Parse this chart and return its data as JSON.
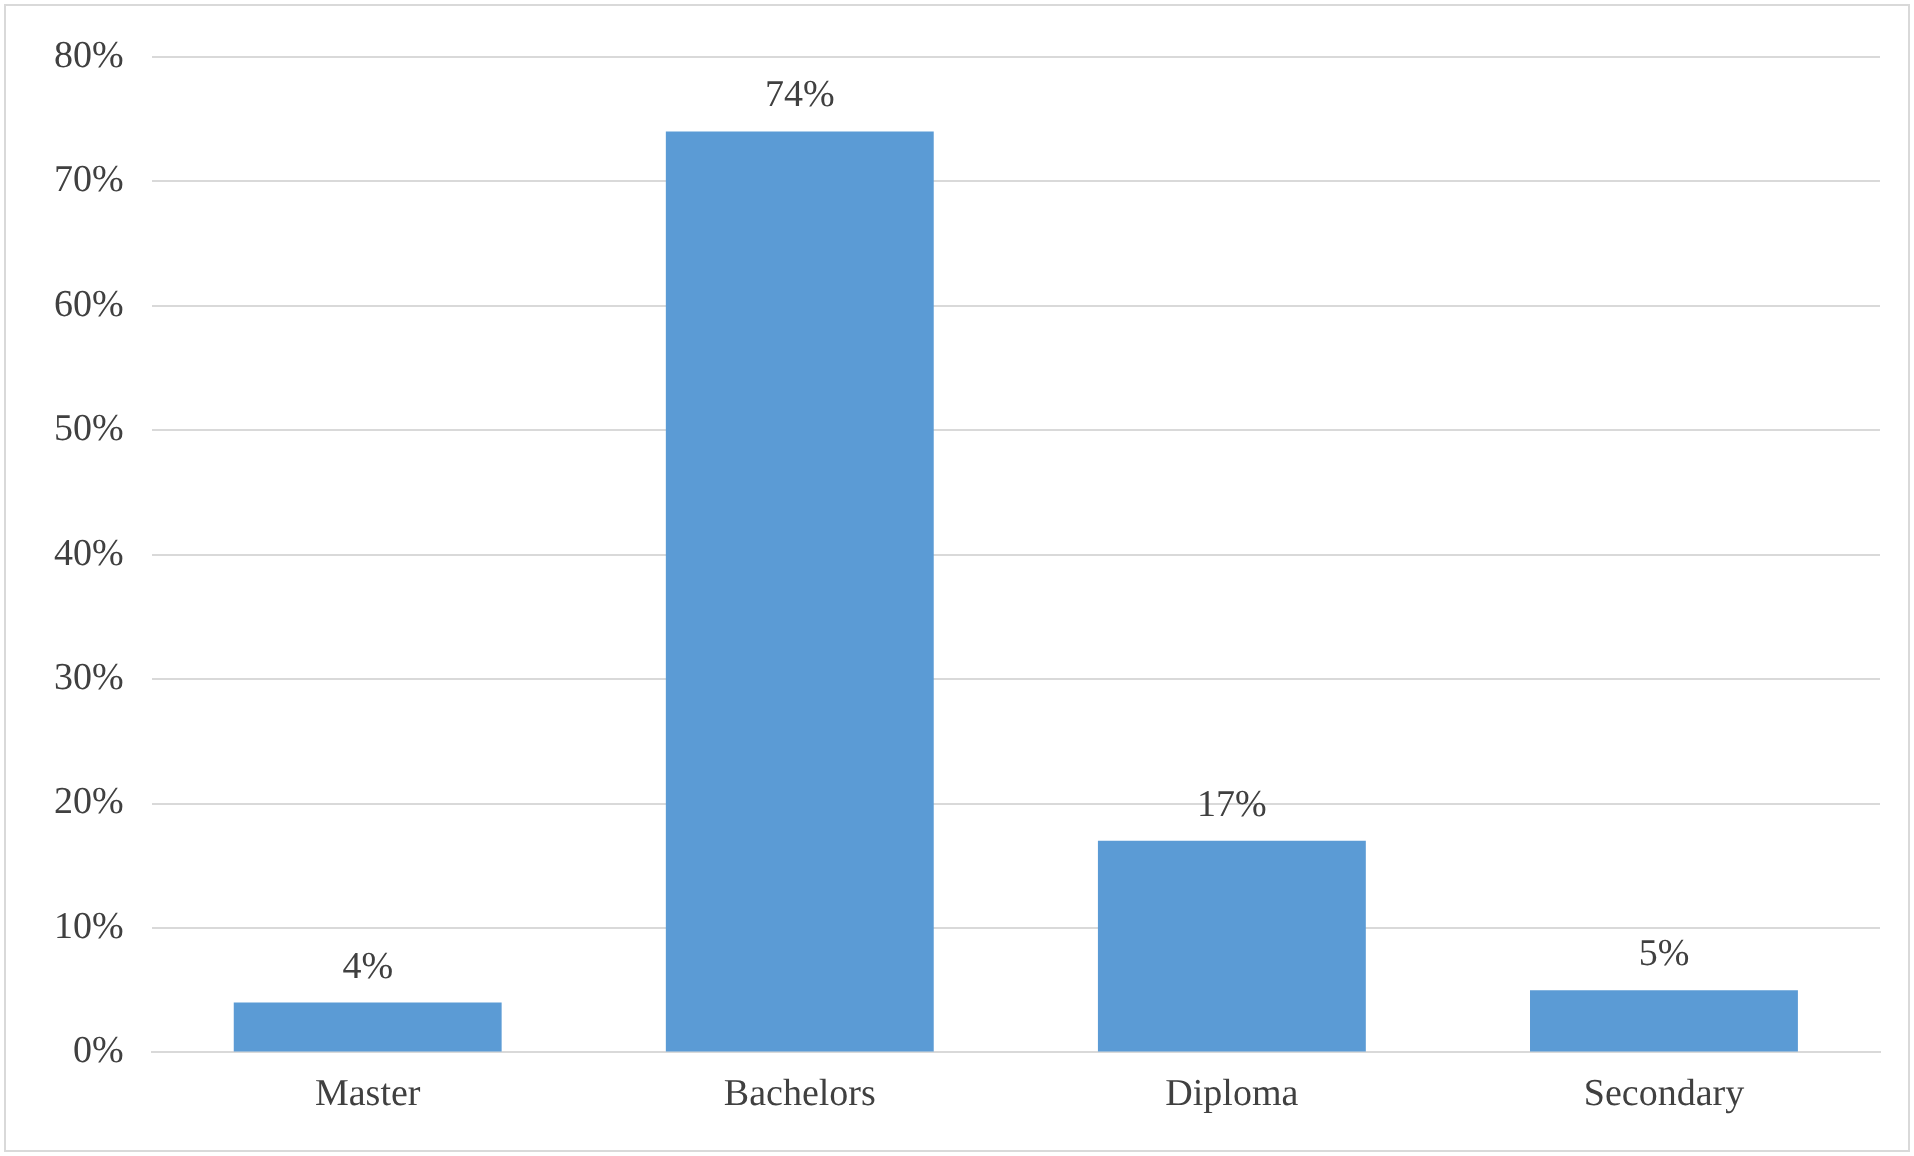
{
  "chart_data": {
    "type": "bar",
    "categories": [
      "Master",
      "Bachelors",
      "Diploma",
      "Secondary"
    ],
    "values": [
      4,
      74,
      17,
      5
    ],
    "value_labels": [
      "4%",
      "74%",
      "17%",
      "5%"
    ],
    "color": "#5b9bd5",
    "ylim": [
      0,
      80
    ],
    "yticks": [
      {
        "value": 0,
        "label": "0%"
      },
      {
        "value": 10,
        "label": "10%"
      },
      {
        "value": 20,
        "label": "20%"
      },
      {
        "value": 30,
        "label": "30%"
      },
      {
        "value": 40,
        "label": "40%"
      },
      {
        "value": 50,
        "label": "50%"
      },
      {
        "value": 60,
        "label": "60%"
      },
      {
        "value": 70,
        "label": "70%"
      },
      {
        "value": 80,
        "label": "80%"
      }
    ],
    "grid": "y",
    "legend": false
  }
}
